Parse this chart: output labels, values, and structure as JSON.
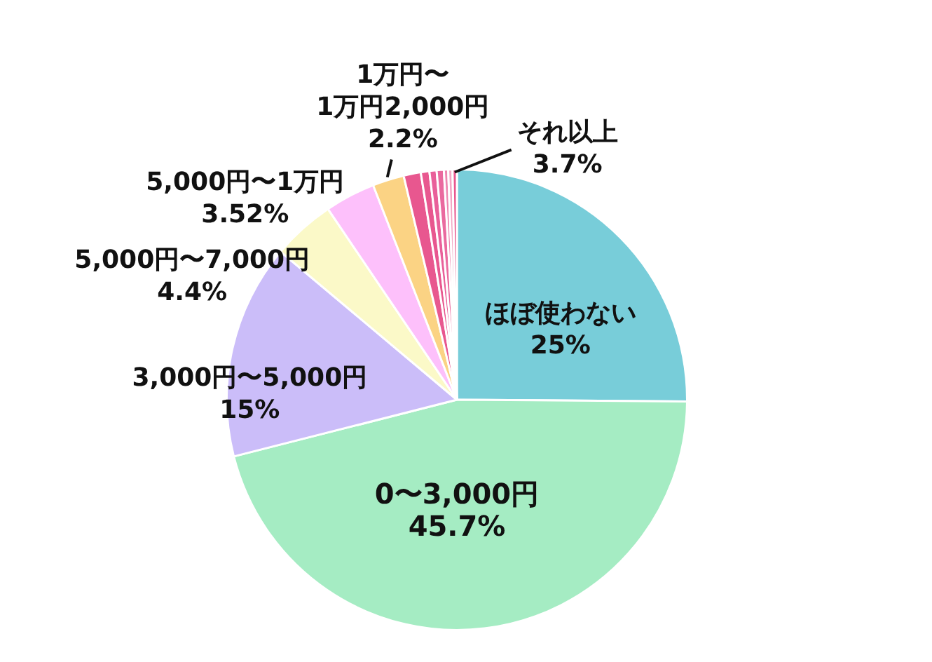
{
  "chart_data": {
    "type": "pie",
    "categories": [
      "ほぼ使わない",
      "0〜3,000円",
      "3,000円〜5,000円",
      "5,000円〜7,000円",
      "5,000円〜1万円",
      "1万円〜\n1万円2,000円",
      null,
      null,
      null,
      null,
      null,
      null,
      null
    ],
    "values": [
      25,
      45.7,
      15,
      4.4,
      3.52,
      2.2,
      1.2,
      0.6,
      0.5,
      0.5,
      0.3,
      0.3,
      0.3
    ],
    "colors": [
      "#78cdd9",
      "#a5ecc3",
      "#cbbdf9",
      "#fbf9c8",
      "#fdc0fb",
      "#fbd384",
      "#e8578f",
      "#e8578f",
      "#e9609a",
      "#ea6a9f",
      "#ee86b0",
      "#f3a6c4",
      "#e8578f"
    ],
    "value_labels": [
      "25%",
      "45.7%",
      "15%",
      "4.4%",
      "3.52%",
      "2.2%",
      null,
      null,
      null,
      null,
      null,
      null,
      null
    ],
    "annotations": [
      "それ以上\n3.7%"
    ]
  }
}
